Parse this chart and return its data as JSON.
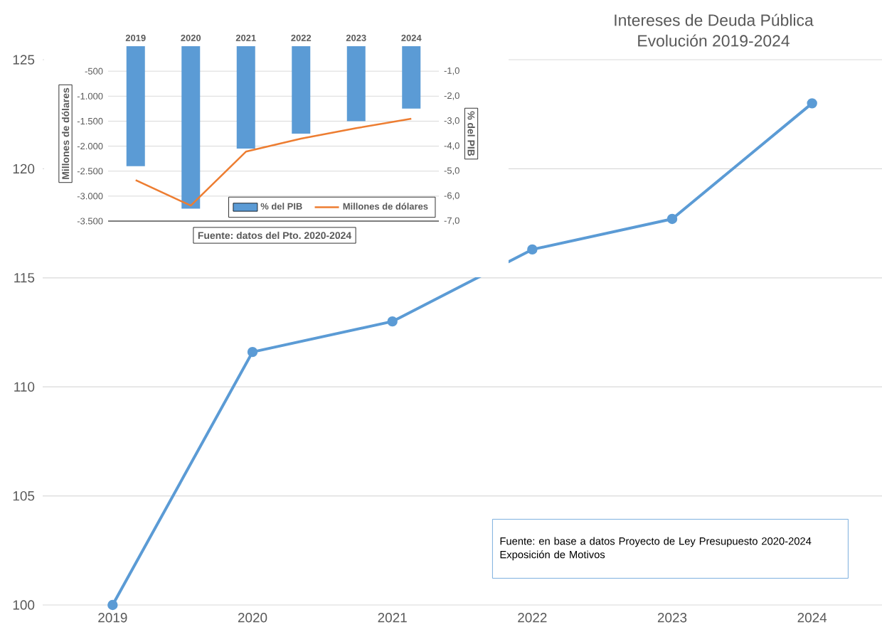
{
  "chart_data": [
    {
      "type": "line",
      "title": "Intereses de Deuda Pública",
      "subtitle": "Evolución 2019-2024",
      "categories": [
        "2019",
        "2020",
        "2021",
        "2022",
        "2023",
        "2024"
      ],
      "values": [
        100,
        111.6,
        113.0,
        116.3,
        117.7,
        123.0
      ],
      "color": "#5b9bd5",
      "ylim": [
        100,
        125
      ],
      "yticks": [
        100,
        105,
        110,
        115,
        120,
        125
      ],
      "grid": "y",
      "marker": "circle",
      "annotations": [
        "Fuente: en base a datos Proyecto de Ley Presupuesto 2020-2024 Exposición de Motivos"
      ]
    },
    {
      "type": "bar",
      "categories": [
        "2019",
        "2020",
        "2021",
        "2022",
        "2023",
        "2024"
      ],
      "series": [
        {
          "name": "% del PIB",
          "color": "#5b9bd5",
          "axis": "y2",
          "values": [
            -4.8,
            -6.5,
            -4.1,
            -3.5,
            -3.0,
            -2.5
          ]
        },
        {
          "name": "Millones de dólares",
          "type": "line",
          "color": "#ed7d31",
          "values": [
            -2680,
            -3190,
            -2110,
            -1850,
            -1640,
            -1450
          ]
        }
      ],
      "ylabel": "Millones de dólares",
      "y2label": "% del PIB",
      "ylim": [
        -3500,
        0
      ],
      "yticks": [
        {
          "value": -3500,
          "label": "-3.500"
        },
        {
          "value": -3000,
          "label": "-3.000"
        },
        {
          "value": -2500,
          "label": "-2.500"
        },
        {
          "value": -2000,
          "label": "-2.000"
        },
        {
          "value": -1500,
          "label": "-1.500"
        },
        {
          "value": -1000,
          "label": "-1.000"
        },
        {
          "value": -500,
          "label": "-500"
        }
      ],
      "y2lim": [
        -7,
        0
      ],
      "y2ticks": [
        {
          "value": -7,
          "label": "-7,0"
        },
        {
          "value": -6,
          "label": "-6,0"
        },
        {
          "value": -5,
          "label": "-5,0"
        },
        {
          "value": -4,
          "label": "-4,0"
        },
        {
          "value": -3,
          "label": "-3,0"
        },
        {
          "value": -2,
          "label": "-2,0"
        },
        {
          "value": -1,
          "label": "-1,0"
        }
      ],
      "grid": "y",
      "legend": "bottom right",
      "annotations": [
        "Fuente: datos del Pto. 2020-2024"
      ]
    }
  ]
}
